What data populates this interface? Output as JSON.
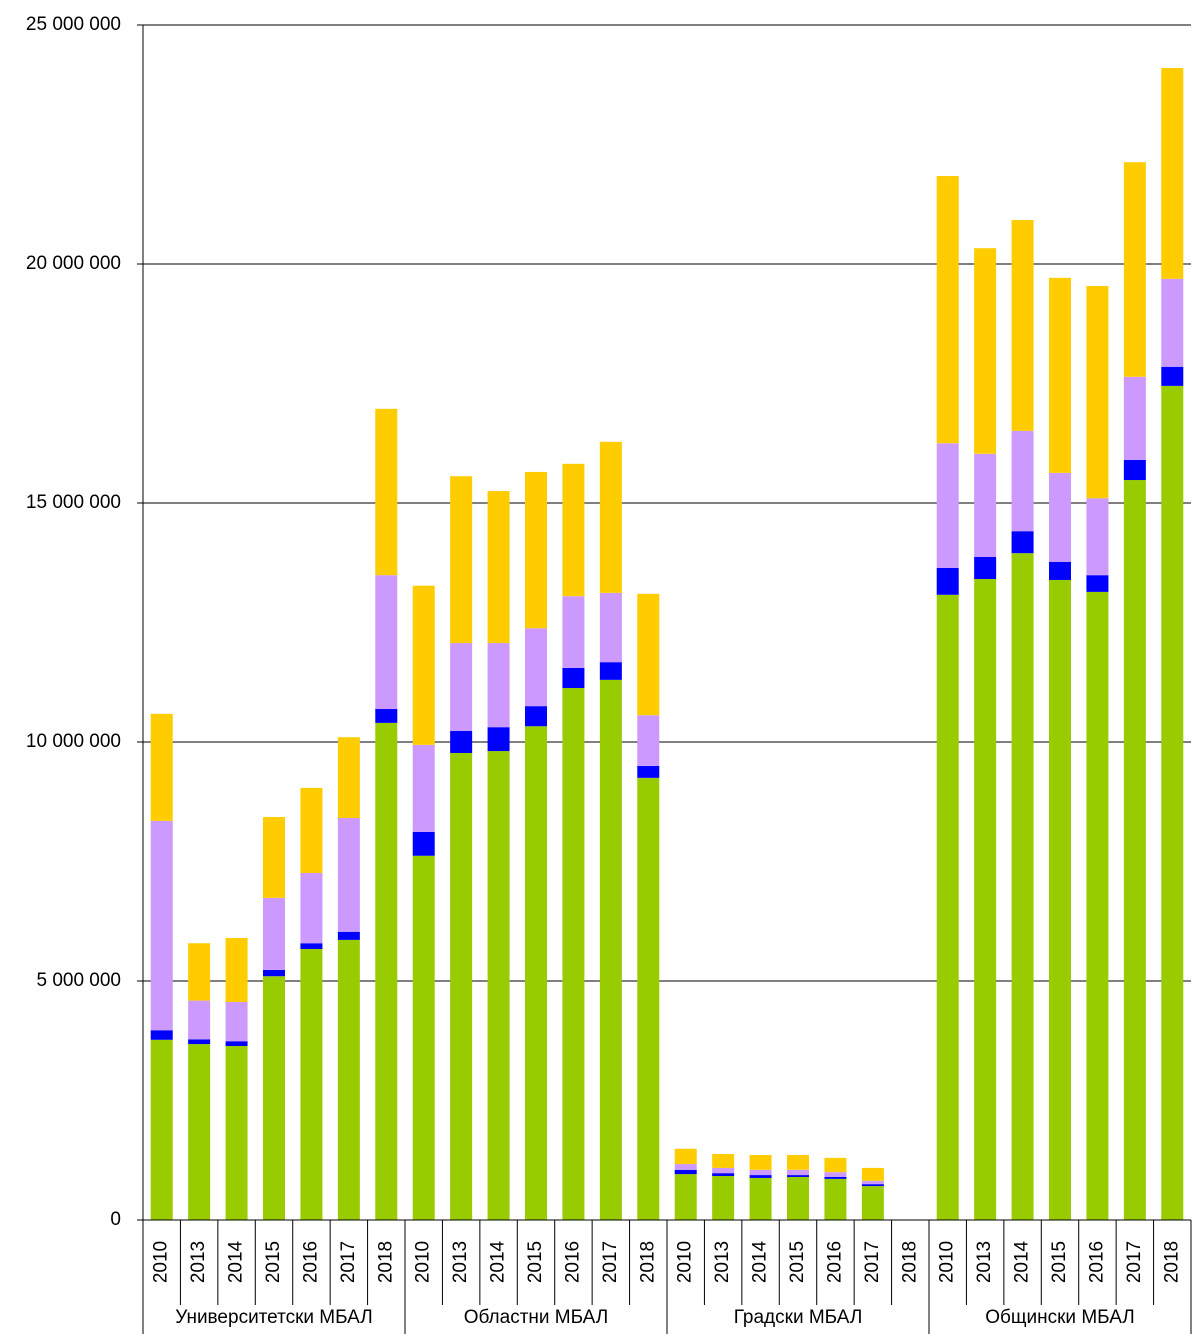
{
  "chart_data": {
    "type": "stacked_bar",
    "groups": [
      {
        "name": "Университетски МБАЛ",
        "categories": [
          "2010",
          "2013",
          "2014",
          "2015",
          "2016",
          "2017",
          "2018"
        ]
      },
      {
        "name": "Областни МБАЛ",
        "categories": [
          "2010",
          "2013",
          "2014",
          "2015",
          "2016",
          "2017",
          "2018"
        ]
      },
      {
        "name": "Градски МБАЛ",
        "categories": [
          "2010",
          "2013",
          "2014",
          "2015",
          "2016",
          "2017",
          "2018"
        ]
      },
      {
        "name": "Общински МБАЛ",
        "categories": [
          "2010",
          "2013",
          "2014",
          "2015",
          "2016",
          "2017",
          "2018"
        ]
      }
    ],
    "series": [
      {
        "color": "#99cc00",
        "values": [
          3770000,
          3680000,
          3640000,
          5100000,
          5670000,
          5860000,
          10400000,
          7620000,
          9770000,
          9810000,
          10330000,
          11130000,
          11300000,
          9250000,
          960000,
          920000,
          880000,
          900000,
          860000,
          710000,
          null,
          13080000,
          13410000,
          13950000,
          13390000,
          13140000,
          15480000,
          17450000
        ]
      },
      {
        "color": "#0000ff",
        "values": [
          200000,
          100000,
          100000,
          130000,
          120000,
          170000,
          290000,
          500000,
          460000,
          500000,
          420000,
          420000,
          370000,
          250000,
          90000,
          60000,
          60000,
          40000,
          40000,
          40000,
          null,
          560000,
          460000,
          460000,
          380000,
          350000,
          420000,
          400000
        ]
      },
      {
        "color": "#cc99ff",
        "values": [
          4380000,
          810000,
          820000,
          1510000,
          1470000,
          2380000,
          2800000,
          1820000,
          1840000,
          1760000,
          1630000,
          1500000,
          1450000,
          1060000,
          120000,
          110000,
          110000,
          110000,
          100000,
          70000,
          null,
          2610000,
          2160000,
          2100000,
          1860000,
          1610000,
          1740000,
          1840000
        ]
      },
      {
        "color": "#ffcc00",
        "values": [
          2240000,
          1200000,
          1340000,
          1690000,
          1780000,
          1690000,
          3480000,
          3330000,
          3490000,
          3180000,
          3270000,
          2770000,
          3160000,
          2540000,
          320000,
          290000,
          310000,
          310000,
          300000,
          270000,
          null,
          5590000,
          4300000,
          4410000,
          4080000,
          4440000,
          4490000,
          4410000
        ]
      }
    ],
    "ylim": [
      0,
      25000000
    ],
    "yticks": [
      0,
      {
        "value": 5000000,
        "label": "5 000 000"
      },
      {
        "value": 10000000,
        "label": "10 000 000"
      },
      {
        "value": 15000000,
        "label": "15 000 000"
      },
      {
        "value": 20000000,
        "label": "20 000 000"
      },
      {
        "value": 25000000,
        "label": "25 000 000"
      }
    ],
    "grid": true
  }
}
